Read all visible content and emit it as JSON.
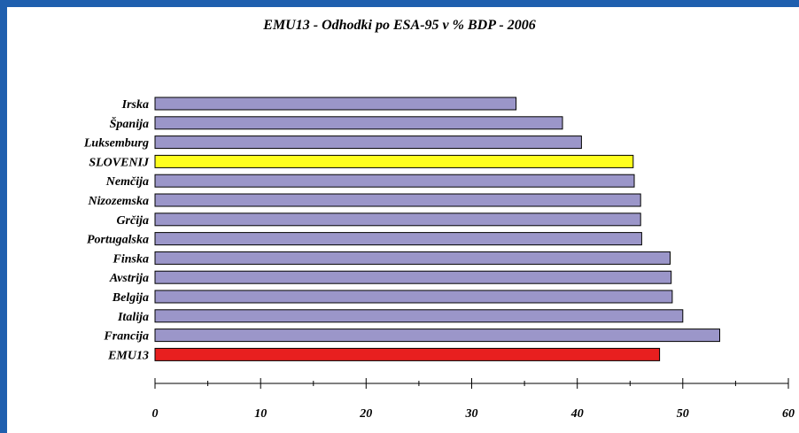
{
  "chart_data": {
    "type": "bar",
    "orientation": "horizontal",
    "title": "EMU13 - Odhodki po ESA-95 v % BDP - 2006",
    "categories": [
      "Irska",
      "Španija",
      "Luksemburg",
      "SLOVENIJ",
      "Nemčija",
      "Nizozemska",
      "Grčija",
      "Portugalska",
      "Finska",
      "Avstrija",
      "Belgija",
      "Italija",
      "Francija",
      "EMU13"
    ],
    "values": [
      34.2,
      38.6,
      40.4,
      45.3,
      45.4,
      46.0,
      46.0,
      46.1,
      48.8,
      48.9,
      49.0,
      50.0,
      53.5,
      47.8
    ],
    "bar_colors": [
      "#9b96c9",
      "#9b96c9",
      "#9b96c9",
      "#ffff1e",
      "#9b96c9",
      "#9b96c9",
      "#9b96c9",
      "#9b96c9",
      "#9b96c9",
      "#9b96c9",
      "#9b96c9",
      "#9b96c9",
      "#9b96c9",
      "#e81f1f"
    ],
    "x_ticks": [
      "0",
      "10",
      "20",
      "30",
      "40",
      "50",
      "60"
    ],
    "xlim": [
      0,
      60
    ],
    "grid": false,
    "legend": "none"
  },
  "colors": {
    "frame": "#1f5fae",
    "background": "#ffffff",
    "default_bar": "#9b96c9",
    "highlight_bar": "#ffff1e",
    "aggregate_bar": "#e81f1f"
  }
}
